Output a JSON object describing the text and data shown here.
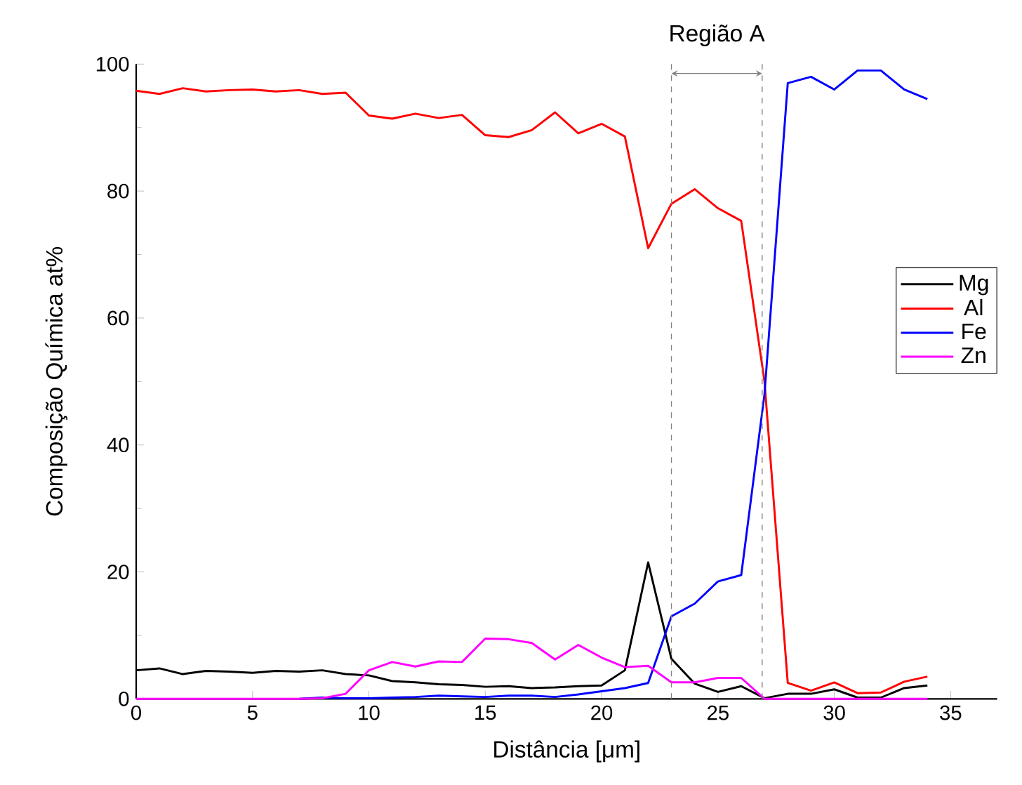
{
  "chart_data": {
    "type": "line",
    "xlabel": "Distância [μm]",
    "ylabel": "Composição Química at%",
    "annotations": [
      "Região A"
    ],
    "xlim": [
      0,
      37
    ],
    "ylim": [
      0,
      100
    ],
    "xticks": [
      0,
      5,
      10,
      15,
      20,
      25,
      30,
      35
    ],
    "yticks": [
      0,
      20,
      40,
      60,
      80,
      100
    ],
    "legend": "right",
    "x": [
      0,
      1,
      2,
      3,
      4,
      5,
      6,
      7,
      8,
      9,
      10,
      11,
      12,
      13,
      14,
      15,
      16,
      17,
      18,
      19,
      20,
      21,
      22,
      23,
      24,
      25,
      26,
      27,
      28,
      29,
      30,
      31,
      32,
      33,
      34
    ],
    "series": [
      {
        "name": "Mg",
        "color": "#000000",
        "values": [
          4.5,
          4.8,
          3.9,
          4.4,
          4.3,
          4.1,
          4.4,
          4.3,
          4.5,
          3.9,
          3.7,
          2.8,
          2.6,
          2.3,
          2.2,
          1.9,
          2.0,
          1.7,
          1.8,
          2.0,
          2.1,
          4.5,
          21.5,
          6.3,
          2.4,
          1.1,
          2.0,
          0.1,
          0.8,
          0.8,
          1.5,
          0.2,
          0.2,
          1.7,
          2.1
        ]
      },
      {
        "name": "Al",
        "color": "#ff0000",
        "values": [
          95.8,
          95.3,
          96.2,
          95.7,
          95.9,
          96.0,
          95.7,
          95.9,
          95.3,
          95.5,
          91.9,
          91.4,
          92.2,
          91.5,
          92.0,
          88.8,
          88.5,
          89.6,
          92.4,
          89.1,
          90.6,
          88.6,
          71.0,
          78.0,
          80.3,
          77.3,
          75.3,
          50.0,
          2.5,
          1.3,
          2.6,
          0.9,
          1.0,
          2.7,
          3.5
        ]
      },
      {
        "name": "Fe",
        "color": "#0000ff",
        "values": [
          null,
          null,
          null,
          null,
          null,
          null,
          null,
          0,
          0.2,
          0.1,
          0.1,
          0.2,
          0.3,
          0.5,
          0.4,
          0.3,
          0.5,
          0.5,
          0.3,
          0.7,
          1.2,
          1.7,
          2.5,
          13.0,
          15.0,
          18.5,
          19.5,
          48.0,
          97.0,
          98.0,
          96.0,
          99.0,
          99.0,
          96.0,
          94.5
        ]
      },
      {
        "name": "Zn",
        "color": "#ff00ff",
        "values": [
          0,
          0,
          0,
          0,
          0,
          0,
          0,
          0,
          0.1,
          0.8,
          4.5,
          5.8,
          5.1,
          5.9,
          5.8,
          9.5,
          9.4,
          8.8,
          6.2,
          8.5,
          6.5,
          5.0,
          5.2,
          2.6,
          2.6,
          3.3,
          3.3,
          0,
          0,
          0,
          0,
          0,
          0,
          0,
          0
        ]
      }
    ],
    "ref_lines": [
      {
        "axis": "x",
        "value": 23,
        "color": "#808080",
        "line_style": "dashed"
      },
      {
        "axis": "x",
        "value": 26.9,
        "color": "#808080",
        "line_style": "dashed"
      }
    ]
  }
}
